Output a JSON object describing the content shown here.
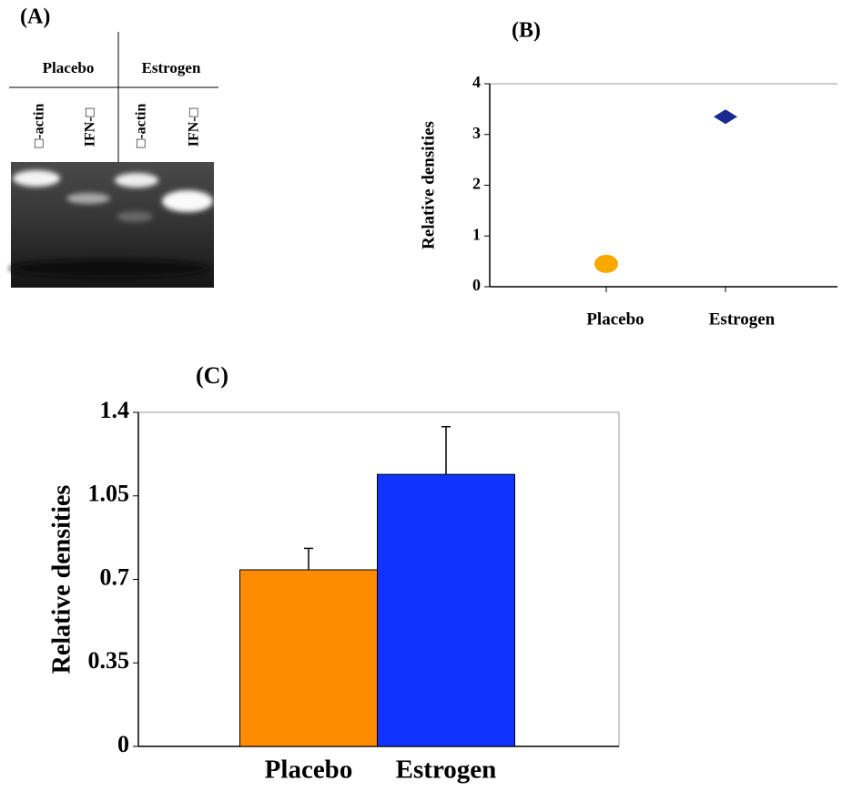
{
  "gel": {
    "label": "(A)",
    "groups": [
      "Placebo",
      "Estrogen"
    ],
    "lanes": [
      "□-actin",
      "IFN-□",
      "□-actin",
      "IFN-□"
    ]
  },
  "chart_data": [
    {
      "type": "scatter",
      "title": "(B)",
      "y_label": "Relative densities",
      "categories": [
        "Placebo",
        "Estrogen"
      ],
      "values": [
        0.45,
        3.35
      ],
      "colors": [
        "#f9a800",
        "#1a2a8f"
      ],
      "markers": [
        "circle",
        "diamond"
      ],
      "ylim": [
        0,
        4
      ],
      "yticks": [
        0,
        1,
        2,
        3,
        4
      ]
    },
    {
      "type": "bar",
      "title": "(C)",
      "y_label": "Relative densities",
      "categories": [
        "Placebo",
        "Estrogen"
      ],
      "values": [
        0.74,
        1.14
      ],
      "errors": [
        0.09,
        0.2
      ],
      "colors": [
        "#ff8c00",
        "#1033ff"
      ],
      "ylim": [
        0,
        1.4
      ],
      "yticks": [
        0,
        0.35,
        0.7,
        1.05,
        1.4
      ]
    }
  ]
}
